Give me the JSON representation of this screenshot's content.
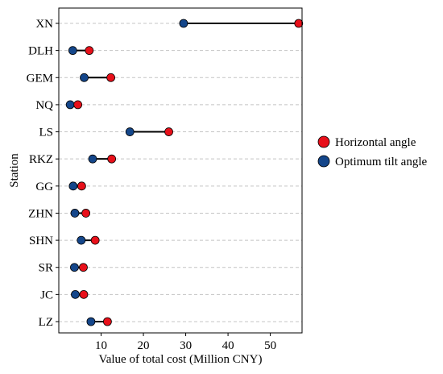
{
  "chart_data": {
    "type": "dumbbell",
    "xlabel": "Value of total cost (Million CNY)",
    "ylabel": "Station",
    "xlim": [
      0,
      57.5
    ],
    "xticks": [
      10,
      20,
      30,
      40,
      50
    ],
    "grid": "horizontal dashed",
    "legend_position": "right",
    "categories": [
      "XN",
      "DLH",
      "GEM",
      "NQ",
      "LS",
      "RKZ",
      "GG",
      "ZHN",
      "SHN",
      "SR",
      "JC",
      "LZ"
    ],
    "series": [
      {
        "name": "Horizontal angle",
        "color": "#e8101a",
        "values": [
          56.7,
          7.2,
          12.3,
          4.5,
          26.0,
          12.5,
          5.4,
          6.4,
          8.6,
          5.8,
          5.9,
          11.5
        ]
      },
      {
        "name": "Optimum tilt angle",
        "color": "#14468a",
        "values": [
          29.5,
          3.3,
          6.0,
          2.7,
          16.8,
          8.0,
          3.4,
          3.8,
          5.3,
          3.7,
          3.9,
          7.6
        ]
      }
    ]
  }
}
